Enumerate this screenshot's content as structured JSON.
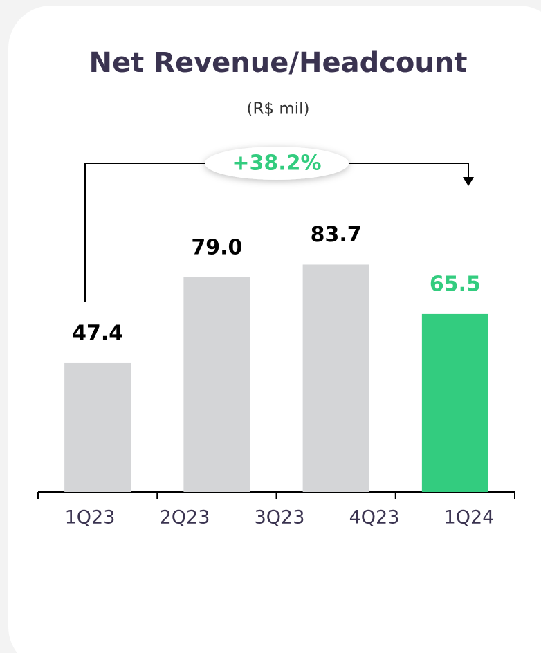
{
  "chart_data": {
    "type": "bar",
    "title": "Net Revenue/Headcount",
    "subtitle": "(R$ mil)",
    "categories": [
      "1Q23",
      "2Q23",
      "3Q23",
      "4Q23",
      "1Q24"
    ],
    "values": [
      47.4,
      79.0,
      83.7,
      null,
      65.5
    ],
    "value_labels": [
      "47.4",
      "79.0",
      "83.7",
      null,
      "65.5"
    ],
    "colors": [
      "#d4d5d7",
      "#d4d5d7",
      "#d4d5d7",
      null,
      "#33cc7f"
    ],
    "label_colors": [
      "#000000",
      "#000000",
      "#000000",
      null,
      "#33cc7f"
    ],
    "annotation": "+38.2%",
    "annotation_color": "#33cc7f"
  }
}
